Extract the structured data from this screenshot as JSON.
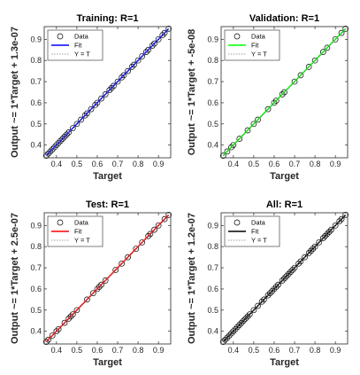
{
  "chart_data": [
    {
      "type": "scatter",
      "title": "Training: R=1",
      "xlabel": "Target",
      "ylabel": "Output ~= 1*Target + 1.3e-07",
      "xlim": [
        0.34,
        0.96
      ],
      "ylim": [
        0.34,
        0.96
      ],
      "xticks": [
        0.4,
        0.5,
        0.6,
        0.7,
        0.8,
        0.9
      ],
      "yticks": [
        0.4,
        0.5,
        0.6,
        0.7,
        0.8,
        0.9
      ],
      "legend_loc": "upper left",
      "series": [
        {
          "name": "Data",
          "color": "#000000",
          "style": "marker",
          "x": [
            0.35,
            0.36,
            0.37,
            0.38,
            0.39,
            0.4,
            0.41,
            0.42,
            0.43,
            0.44,
            0.45,
            0.46,
            0.48,
            0.5,
            0.52,
            0.54,
            0.55,
            0.57,
            0.59,
            0.6,
            0.62,
            0.64,
            0.66,
            0.67,
            0.68,
            0.7,
            0.72,
            0.73,
            0.75,
            0.77,
            0.78,
            0.8,
            0.82,
            0.84,
            0.85,
            0.87,
            0.88,
            0.9,
            0.92,
            0.93,
            0.95
          ],
          "values": [
            0.35,
            0.36,
            0.37,
            0.38,
            0.39,
            0.4,
            0.41,
            0.42,
            0.43,
            0.44,
            0.45,
            0.46,
            0.48,
            0.5,
            0.52,
            0.54,
            0.55,
            0.57,
            0.59,
            0.6,
            0.62,
            0.64,
            0.66,
            0.67,
            0.68,
            0.7,
            0.72,
            0.73,
            0.75,
            0.77,
            0.78,
            0.8,
            0.82,
            0.84,
            0.85,
            0.87,
            0.88,
            0.9,
            0.92,
            0.93,
            0.95
          ]
        },
        {
          "name": "Fit",
          "color": "#0000ff",
          "style": "solid",
          "x": [
            0.35,
            0.95
          ],
          "values": [
            0.35,
            0.95
          ]
        },
        {
          "name": "Y = T",
          "color": "#7f7f7f",
          "style": "dotted",
          "x": [
            0.35,
            0.95
          ],
          "values": [
            0.35,
            0.95
          ]
        }
      ]
    },
    {
      "type": "scatter",
      "title": "Validation: R=1",
      "xlabel": "Target",
      "ylabel": "Output ~= 1*Target + -5e-08",
      "xlim": [
        0.34,
        0.96
      ],
      "ylim": [
        0.34,
        0.96
      ],
      "xticks": [
        0.4,
        0.5,
        0.6,
        0.7,
        0.8,
        0.9
      ],
      "yticks": [
        0.4,
        0.5,
        0.6,
        0.7,
        0.8,
        0.9
      ],
      "legend_loc": "upper left",
      "series": [
        {
          "name": "Data",
          "color": "#000000",
          "style": "marker",
          "x": [
            0.35,
            0.37,
            0.39,
            0.4,
            0.43,
            0.47,
            0.5,
            0.52,
            0.57,
            0.6,
            0.61,
            0.64,
            0.65,
            0.7,
            0.73,
            0.77,
            0.8,
            0.84,
            0.86,
            0.9,
            0.93,
            0.95
          ],
          "values": [
            0.35,
            0.37,
            0.39,
            0.4,
            0.43,
            0.47,
            0.5,
            0.52,
            0.57,
            0.6,
            0.61,
            0.64,
            0.65,
            0.7,
            0.73,
            0.77,
            0.8,
            0.84,
            0.86,
            0.9,
            0.93,
            0.95
          ]
        },
        {
          "name": "Fit",
          "color": "#00ff00",
          "style": "solid",
          "x": [
            0.35,
            0.95
          ],
          "values": [
            0.35,
            0.95
          ]
        },
        {
          "name": "Y = T",
          "color": "#7f7f7f",
          "style": "dotted",
          "x": [
            0.35,
            0.95
          ],
          "values": [
            0.35,
            0.95
          ]
        }
      ]
    },
    {
      "type": "scatter",
      "title": "Test: R=1",
      "xlabel": "Target",
      "ylabel": "Output ~= 1*Target + 2.5e-07",
      "xlim": [
        0.34,
        0.96
      ],
      "ylim": [
        0.34,
        0.96
      ],
      "xticks": [
        0.4,
        0.5,
        0.6,
        0.7,
        0.8,
        0.9
      ],
      "yticks": [
        0.4,
        0.5,
        0.6,
        0.7,
        0.8,
        0.9
      ],
      "legend_loc": "upper left",
      "series": [
        {
          "name": "Data",
          "color": "#000000",
          "style": "marker",
          "x": [
            0.35,
            0.36,
            0.38,
            0.4,
            0.41,
            0.44,
            0.46,
            0.47,
            0.48,
            0.5,
            0.55,
            0.58,
            0.6,
            0.61,
            0.62,
            0.64,
            0.69,
            0.72,
            0.75,
            0.79,
            0.82,
            0.85,
            0.86,
            0.88,
            0.9,
            0.93,
            0.95
          ],
          "values": [
            0.35,
            0.36,
            0.38,
            0.4,
            0.41,
            0.44,
            0.46,
            0.47,
            0.48,
            0.5,
            0.55,
            0.58,
            0.6,
            0.61,
            0.62,
            0.64,
            0.69,
            0.72,
            0.75,
            0.79,
            0.82,
            0.85,
            0.86,
            0.88,
            0.9,
            0.93,
            0.95
          ]
        },
        {
          "name": "Fit",
          "color": "#ff0000",
          "style": "solid",
          "x": [
            0.35,
            0.95
          ],
          "values": [
            0.35,
            0.95
          ]
        },
        {
          "name": "Y = T",
          "color": "#7f7f7f",
          "style": "dotted",
          "x": [
            0.35,
            0.95
          ],
          "values": [
            0.35,
            0.95
          ]
        }
      ]
    },
    {
      "type": "scatter",
      "title": "All: R=1",
      "xlabel": "Target",
      "ylabel": "Output ~= 1*Target + 1.2e-07",
      "xlim": [
        0.34,
        0.96
      ],
      "ylim": [
        0.34,
        0.96
      ],
      "xticks": [
        0.4,
        0.5,
        0.6,
        0.7,
        0.8,
        0.9
      ],
      "yticks": [
        0.4,
        0.5,
        0.6,
        0.7,
        0.8,
        0.9
      ],
      "legend_loc": "upper left",
      "series": [
        {
          "name": "Data",
          "color": "#000000",
          "style": "marker",
          "x": [
            0.35,
            0.36,
            0.37,
            0.38,
            0.39,
            0.4,
            0.41,
            0.42,
            0.43,
            0.44,
            0.45,
            0.46,
            0.47,
            0.48,
            0.5,
            0.52,
            0.54,
            0.55,
            0.57,
            0.58,
            0.59,
            0.6,
            0.61,
            0.62,
            0.64,
            0.65,
            0.66,
            0.67,
            0.68,
            0.69,
            0.7,
            0.72,
            0.73,
            0.75,
            0.77,
            0.78,
            0.79,
            0.8,
            0.82,
            0.84,
            0.85,
            0.86,
            0.87,
            0.88,
            0.9,
            0.92,
            0.93,
            0.95
          ],
          "values": [
            0.35,
            0.36,
            0.37,
            0.38,
            0.39,
            0.4,
            0.41,
            0.42,
            0.43,
            0.44,
            0.45,
            0.46,
            0.47,
            0.48,
            0.5,
            0.52,
            0.54,
            0.55,
            0.57,
            0.58,
            0.59,
            0.6,
            0.61,
            0.62,
            0.64,
            0.65,
            0.66,
            0.67,
            0.68,
            0.69,
            0.7,
            0.72,
            0.73,
            0.75,
            0.77,
            0.78,
            0.79,
            0.8,
            0.82,
            0.84,
            0.85,
            0.86,
            0.87,
            0.88,
            0.9,
            0.92,
            0.93,
            0.95
          ]
        },
        {
          "name": "Fit",
          "color": "#000000",
          "style": "solid",
          "x": [
            0.35,
            0.95
          ],
          "values": [
            0.35,
            0.95
          ]
        },
        {
          "name": "Y = T",
          "color": "#7f7f7f",
          "style": "dotted",
          "x": [
            0.35,
            0.95
          ],
          "values": [
            0.35,
            0.95
          ]
        }
      ]
    }
  ]
}
